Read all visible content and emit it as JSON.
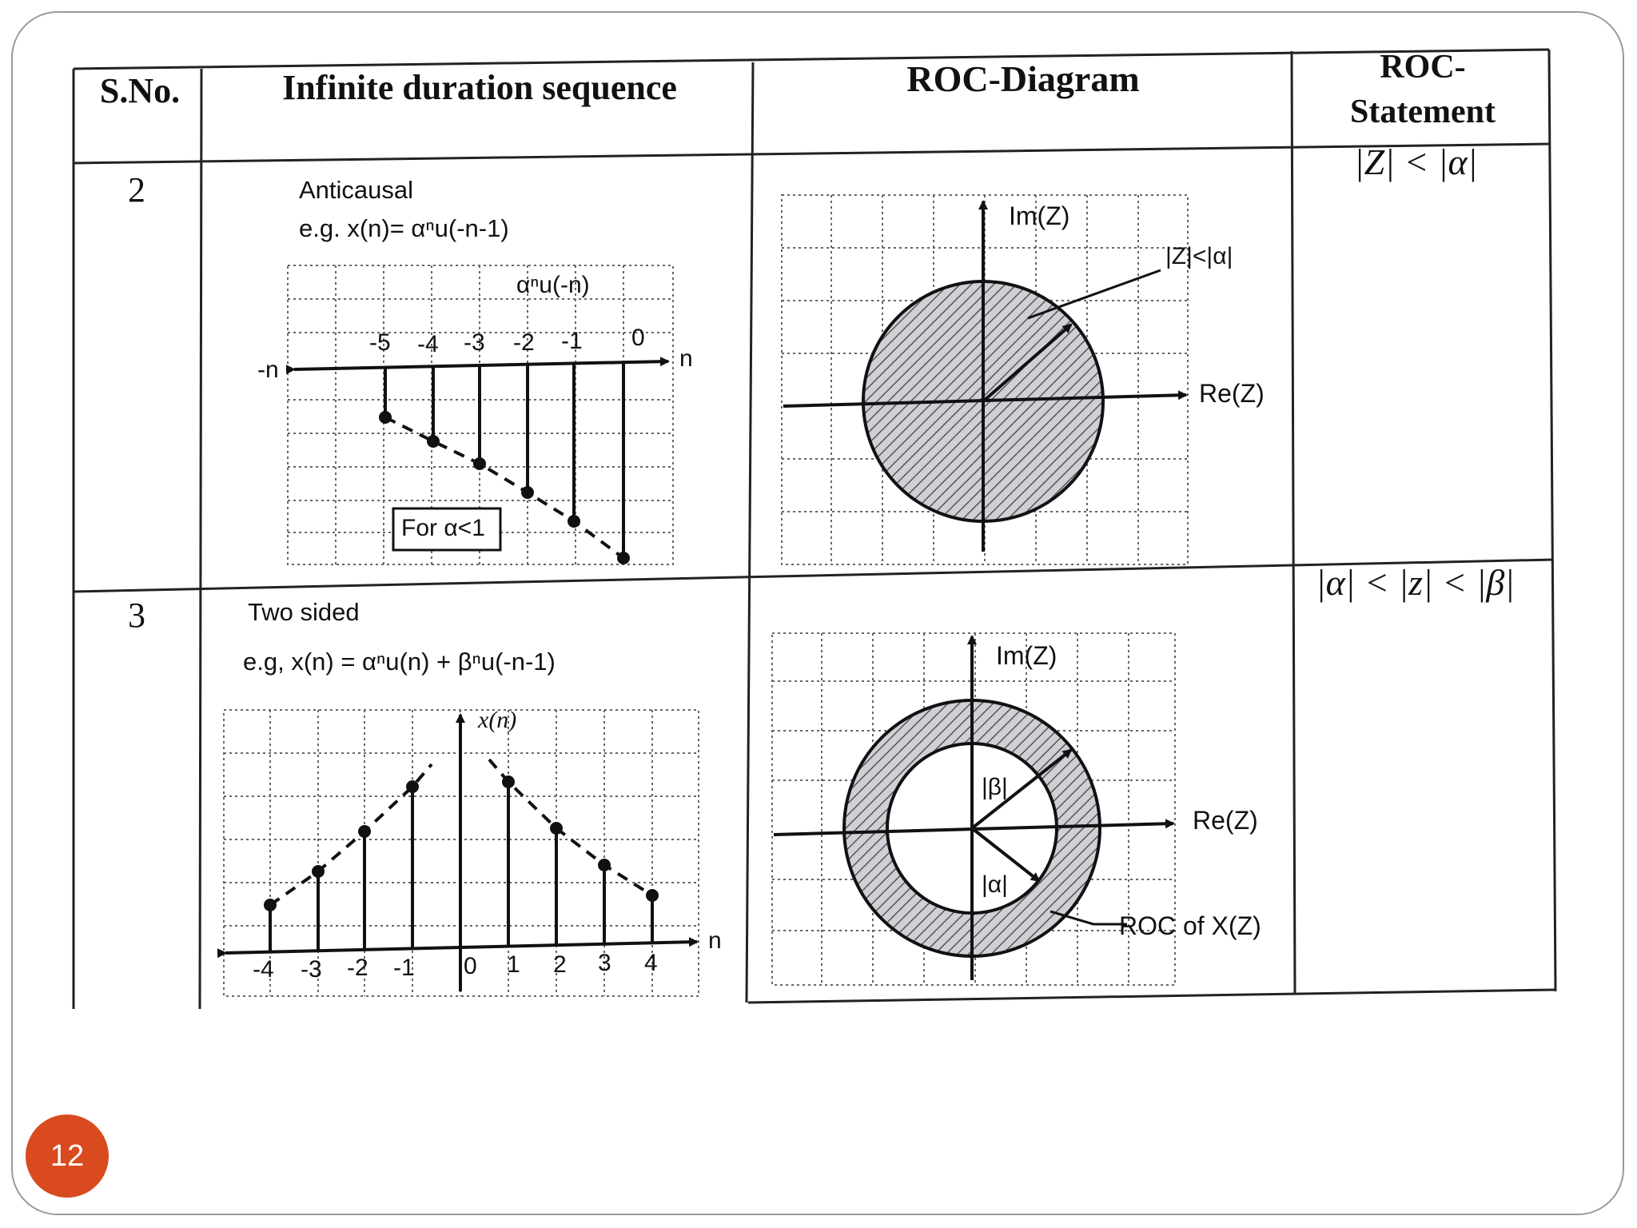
{
  "table": {
    "headers": {
      "sno": "S.No.",
      "sequence": "Infinite duration sequence",
      "roc_diagram": "ROC-Diagram",
      "roc_statement_line1": "ROC-",
      "roc_statement_line2": "Statement"
    },
    "rows": [
      {
        "sno": "2",
        "type": "Anticausal",
        "example": "e.g. x(n)= αⁿu(-n-1)",
        "plot": {
          "signal_label": "αⁿu(-n)",
          "axis_left": "-n",
          "axis_right": "n",
          "ticks": [
            "-5",
            "-4",
            "-3",
            "-2",
            "-1",
            "0"
          ],
          "note": "For α<1"
        },
        "roc": {
          "im_label": "Im(Z)",
          "re_label": "Re(Z)",
          "radius_label": "|Z|<|α|"
        },
        "statement": "|Z| < |α|"
      },
      {
        "sno": "3",
        "type": "Two sided",
        "example": "e.g, x(n) = αⁿu(n) + βⁿu(-n-1)",
        "plot": {
          "signal_label": "x(n)",
          "axis_right": "n",
          "ticks": [
            "-4",
            "-3",
            "-2",
            "-1",
            "0",
            "1",
            "2",
            "3",
            "4"
          ]
        },
        "roc": {
          "im_label": "Im(Z)",
          "re_label": "Re(Z)",
          "beta_label": "|β|",
          "alpha_label": "|α|",
          "roc_label": "ROC of X(Z)"
        },
        "statement": "|α| < |z| < |β|"
      }
    ]
  },
  "page_number": "12"
}
